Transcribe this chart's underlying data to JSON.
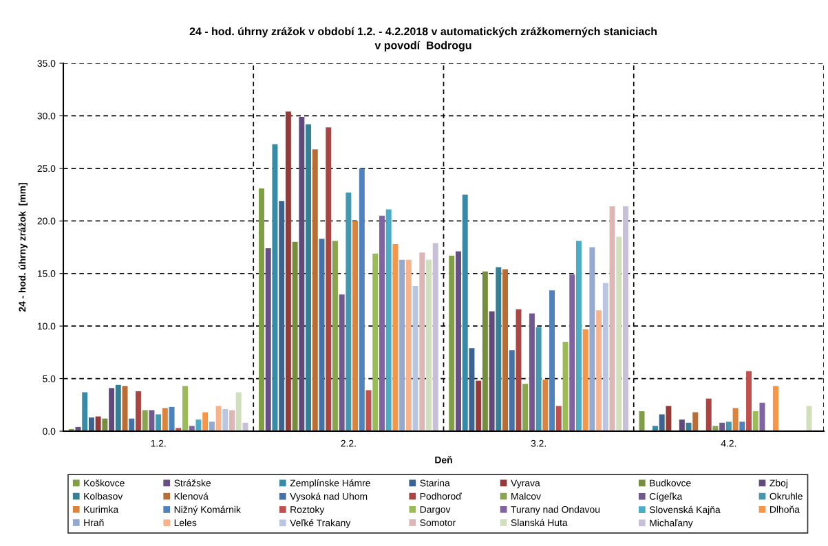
{
  "chart_data": {
    "type": "bar",
    "title": "24 - hod. úhrny zrážok v období 1.2. - 4.2.2018 v automatických zrážkomerných staniciach\nv povodí  Bodrogu",
    "xlabel": "Deň",
    "ylabel": "24 - hod. úhrny zrážok  [mm]",
    "categories": [
      "1.2.",
      "2.2.",
      "3.2.",
      "4.2."
    ],
    "series": [
      {
        "name": "Koškovce",
        "color": "#7f9e45",
        "values": [
          0.2,
          23.1,
          16.7,
          1.9
        ]
      },
      {
        "name": "Strážske",
        "color": "#664f85",
        "values": [
          0.4,
          17.4,
          17.1,
          null
        ]
      },
      {
        "name": "Zemplínske Hámre",
        "color": "#378ba6",
        "values": [
          3.7,
          27.3,
          22.5,
          0.5
        ]
      },
      {
        "name": "Starina",
        "color": "#3c6290",
        "values": [
          1.3,
          21.9,
          7.9,
          1.6
        ]
      },
      {
        "name": "Vyrava",
        "color": "#943b3a",
        "values": [
          1.4,
          30.4,
          4.8,
          2.4
        ]
      },
      {
        "name": "Budkovce",
        "color": "#768c3f",
        "values": [
          1.2,
          18.0,
          15.2,
          null
        ]
      },
      {
        "name": "Zboj",
        "color": "#5f4a7b",
        "values": [
          4.1,
          29.9,
          11.4,
          1.1
        ]
      },
      {
        "name": "Kolbasov",
        "color": "#358095",
        "values": [
          4.4,
          29.2,
          15.6,
          0.8
        ]
      },
      {
        "name": "Klenová",
        "color": "#b96d35",
        "values": [
          4.3,
          26.8,
          15.4,
          1.8
        ]
      },
      {
        "name": "Vysoká nad Uhom",
        "color": "#4571a6",
        "values": [
          1.2,
          18.3,
          7.7,
          null
        ]
      },
      {
        "name": "Podhoroď",
        "color": "#a94643",
        "values": [
          3.8,
          28.9,
          11.6,
          3.1
        ]
      },
      {
        "name": "Malcov",
        "color": "#89a54e",
        "values": [
          2.0,
          18.1,
          4.5,
          0.5
        ]
      },
      {
        "name": "Cígeľka",
        "color": "#71588f",
        "values": [
          2.0,
          13.0,
          11.2,
          0.8
        ]
      },
      {
        "name": "Okruhle",
        "color": "#4298af",
        "values": [
          1.6,
          22.7,
          9.9,
          0.9
        ]
      },
      {
        "name": "Kurimka",
        "color": "#db843d",
        "values": [
          2.2,
          20.0,
          4.9,
          2.2
        ]
      },
      {
        "name": "Nižný Komárnik",
        "color": "#4f81bd",
        "values": [
          2.3,
          25.0,
          13.4,
          0.9
        ]
      },
      {
        "name": "Roztoky",
        "color": "#c0504d",
        "values": [
          0.3,
          3.9,
          2.4,
          5.7
        ]
      },
      {
        "name": "Dargov",
        "color": "#9bbb59",
        "values": [
          4.3,
          16.9,
          8.5,
          1.9
        ]
      },
      {
        "name": "Turany nad Ondavou",
        "color": "#8064a2",
        "values": [
          0.5,
          20.5,
          14.9,
          2.7
        ]
      },
      {
        "name": "Slovenská Kajňa",
        "color": "#4bacc6",
        "values": [
          1.1,
          21.1,
          18.1,
          null
        ]
      },
      {
        "name": "Dlhoňa",
        "color": "#f79646",
        "values": [
          1.8,
          17.8,
          9.7,
          4.3
        ]
      },
      {
        "name": "Hraň",
        "color": "#93a9cf",
        "values": [
          0.9,
          16.3,
          17.5,
          null
        ]
      },
      {
        "name": "Leles",
        "color": "#f8b38d",
        "values": [
          2.4,
          16.3,
          11.5,
          null
        ]
      },
      {
        "name": "Veľké Trakany",
        "color": "#bac6e1",
        "values": [
          2.1,
          13.8,
          14.1,
          null
        ]
      },
      {
        "name": "Somotor",
        "color": "#ddb7b6",
        "values": [
          2.0,
          17.0,
          21.4,
          null
        ]
      },
      {
        "name": "Slanská Huta",
        "color": "#d2dfbd",
        "values": [
          3.7,
          16.3,
          18.5,
          2.4
        ]
      },
      {
        "name": "Michaľany",
        "color": "#c8c0d9",
        "values": [
          0.8,
          17.9,
          21.4,
          null
        ]
      }
    ],
    "ylim": [
      0,
      35
    ],
    "yticks": [
      {
        "value": 0,
        "label": "0.0"
      },
      {
        "value": 5,
        "label": "5.0"
      },
      {
        "value": 10,
        "label": "10.0"
      },
      {
        "value": 15,
        "label": "15.0"
      },
      {
        "value": 20,
        "label": "20.0"
      },
      {
        "value": 25,
        "label": "25.0"
      },
      {
        "value": 30,
        "label": "30.0"
      },
      {
        "value": 35,
        "label": "35.0"
      }
    ],
    "grid": true,
    "legend": "bottom"
  }
}
